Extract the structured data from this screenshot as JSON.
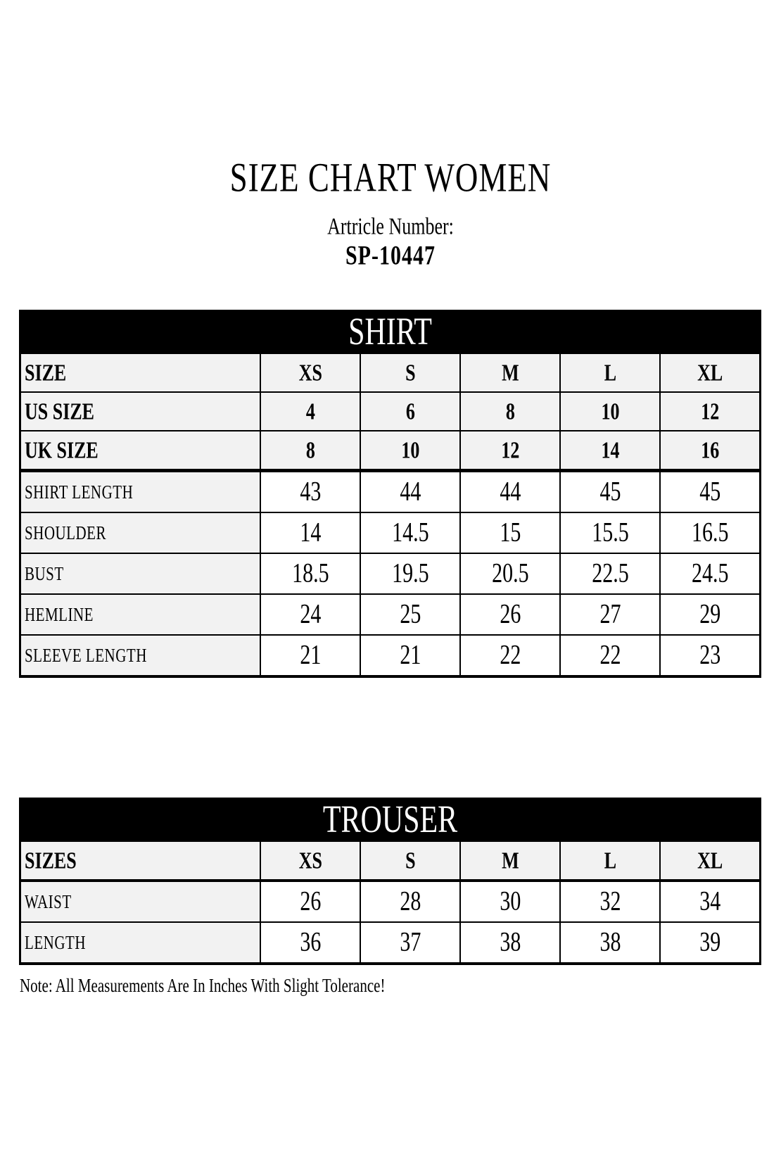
{
  "page": {
    "title": "SIZE CHART WOMEN",
    "article_label": "Artricle Number:",
    "article_number": "SP-10447",
    "note": "Note: All Measurements Are In Inches With Slight Tolerance!"
  },
  "colors": {
    "band_bg": "#000000",
    "band_text": "#ffffff",
    "header_row_bg": "#f2f2f2",
    "data_cell_bg": "#ffffff",
    "border": "#000000"
  },
  "shirt_table": {
    "title": "SHIRT",
    "size_rows": [
      {
        "label": "SIZE",
        "values": [
          "XS",
          "S",
          "M",
          "L",
          "XL"
        ]
      },
      {
        "label": "US SIZE",
        "values": [
          "4",
          "6",
          "8",
          "10",
          "12"
        ]
      },
      {
        "label": "UK SIZE",
        "values": [
          "8",
          "10",
          "12",
          "14",
          "16"
        ]
      }
    ],
    "measurement_rows": [
      {
        "label": "SHIRT LENGTH",
        "values": [
          "43",
          "44",
          "44",
          "45",
          "45"
        ]
      },
      {
        "label": "SHOULDER",
        "values": [
          "14",
          "14.5",
          "15",
          "15.5",
          "16.5"
        ]
      },
      {
        "label": "BUST",
        "values": [
          "18.5",
          "19.5",
          "20.5",
          "22.5",
          "24.5"
        ]
      },
      {
        "label": "HEMLINE",
        "values": [
          "24",
          "25",
          "26",
          "27",
          "29"
        ]
      },
      {
        "label": "SLEEVE LENGTH",
        "values": [
          "21",
          "21",
          "22",
          "22",
          "23"
        ]
      }
    ]
  },
  "trouser_table": {
    "title": "TROUSER",
    "size_rows": [
      {
        "label": "SIZES",
        "values": [
          "XS",
          "S",
          "M",
          "L",
          "XL"
        ]
      }
    ],
    "measurement_rows": [
      {
        "label": "WAIST",
        "values": [
          "26",
          "28",
          "30",
          "32",
          "34"
        ]
      },
      {
        "label": "LENGTH",
        "values": [
          "36",
          "37",
          "38",
          "38",
          "39"
        ]
      }
    ]
  }
}
